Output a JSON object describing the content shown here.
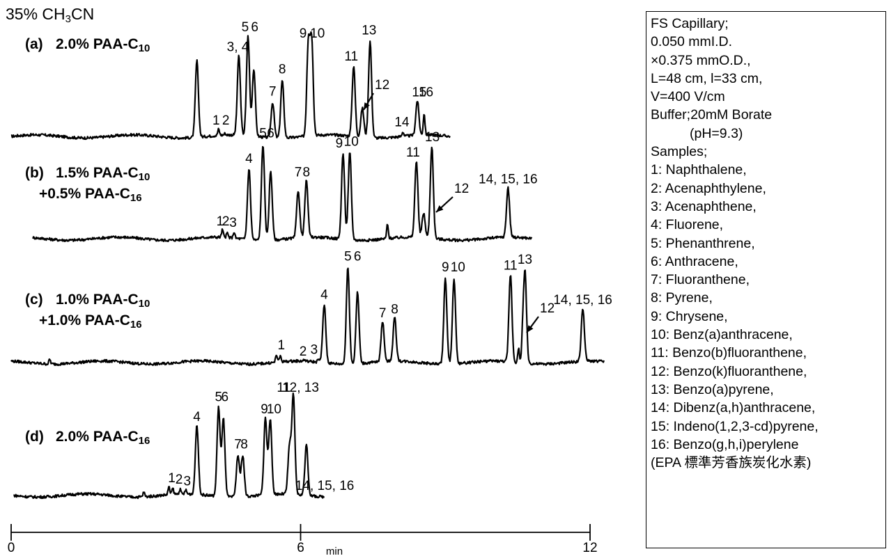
{
  "chart_data": {
    "type": "line",
    "title": "35% CH3CN",
    "title_text": "35% CH",
    "title_sub": "3",
    "title_text2": "CN",
    "xaxis": {
      "label": "min",
      "ticks": [
        "0",
        "6",
        "12"
      ],
      "range": [
        0,
        12
      ]
    },
    "panels": [
      {
        "id": "a",
        "label_lines": [
          {
            "prefix": "(a)",
            "text": "2.0% PAA-C",
            "sub": "10"
          }
        ],
        "peaks": [
          {
            "t": 3.85,
            "h": 1.0
          },
          {
            "t": 4.3,
            "h": 0.08
          },
          {
            "t": 4.43,
            "h": 0.02
          },
          {
            "t": 4.72,
            "h": 1.04
          },
          {
            "t": 4.91,
            "h": 1.3
          },
          {
            "t": 5.03,
            "h": 0.88
          },
          {
            "t": 5.42,
            "h": 0.46
          },
          {
            "t": 5.62,
            "h": 0.75
          },
          {
            "t": 6.16,
            "h": 1.2
          },
          {
            "t": 6.23,
            "h": 1.22
          },
          {
            "t": 7.1,
            "h": 0.92
          },
          {
            "t": 7.28,
            "h": 0.38
          },
          {
            "t": 7.44,
            "h": 1.26
          },
          {
            "t": 8.12,
            "h": 0.06
          },
          {
            "t": 8.42,
            "h": 0.45
          },
          {
            "t": 8.56,
            "h": 0.28
          }
        ],
        "labels": [
          {
            "text": "1",
            "t": 4.25
          },
          {
            "text": "2",
            "t": 4.45
          },
          {
            "text": "3, 4",
            "t": 4.7
          },
          {
            "text": "5",
            "t": 4.85
          },
          {
            "text": "6",
            "t": 5.05
          },
          {
            "text": "7",
            "t": 5.42
          },
          {
            "text": "8",
            "t": 5.62
          },
          {
            "text": "9",
            "t": 6.05
          },
          {
            "text": "10",
            "t": 6.35
          },
          {
            "text": "11",
            "t": 7.05
          },
          {
            "text": "12",
            "t": 7.72
          },
          {
            "text": "13",
            "t": 7.42
          },
          {
            "text": "14",
            "t": 8.1
          },
          {
            "text": "15",
            "t": 8.46
          },
          {
            "text": "16",
            "t": 8.6
          }
        ]
      },
      {
        "id": "b",
        "label_lines": [
          {
            "prefix": "(b)",
            "text": "1.5% PAA-C",
            "sub": "10"
          },
          {
            "prefix": "",
            "text": "+0.5% PAA-C",
            "sub": "16"
          }
        ],
        "peaks": [
          {
            "t": 4.38,
            "h": 0.1
          },
          {
            "t": 4.48,
            "h": 0.06
          },
          {
            "t": 4.62,
            "h": 0.08
          },
          {
            "t": 4.93,
            "h": 0.92
          },
          {
            "t": 5.22,
            "h": 1.25
          },
          {
            "t": 5.38,
            "h": 0.9
          },
          {
            "t": 5.95,
            "h": 0.62
          },
          {
            "t": 6.12,
            "h": 0.74
          },
          {
            "t": 6.88,
            "h": 1.12
          },
          {
            "t": 7.02,
            "h": 1.14
          },
          {
            "t": 7.8,
            "h": 0.18
          },
          {
            "t": 8.4,
            "h": 1.0
          },
          {
            "t": 8.55,
            "h": 0.32
          },
          {
            "t": 8.72,
            "h": 1.2
          },
          {
            "t": 10.3,
            "h": 0.65
          }
        ],
        "labels": [
          {
            "text": "1",
            "t": 4.33
          },
          {
            "text": "2",
            "t": 4.45
          },
          {
            "text": "3",
            "t": 4.6
          },
          {
            "text": "4",
            "t": 4.93
          },
          {
            "text": "5",
            "t": 5.22
          },
          {
            "text": "6",
            "t": 5.38
          },
          {
            "text": "7",
            "t": 5.95
          },
          {
            "text": "8",
            "t": 6.12
          },
          {
            "text": "9",
            "t": 6.8
          },
          {
            "text": "10",
            "t": 7.05
          },
          {
            "text": "11",
            "t": 8.33
          },
          {
            "text": "12",
            "t": 9.15
          },
          {
            "text": "13",
            "t": 8.73
          },
          {
            "text": "14, 15, 16",
            "t": 10.3
          }
        ]
      },
      {
        "id": "c",
        "label_lines": [
          {
            "prefix": "(c)",
            "text": "1.0% PAA-C",
            "sub": "10"
          },
          {
            "prefix": "",
            "text": "+1.0% PAA-C",
            "sub": "16"
          }
        ],
        "peaks": [
          {
            "t": 0.8,
            "h": 0.06
          },
          {
            "t": 5.5,
            "h": 0.1
          },
          {
            "t": 5.58,
            "h": 0.08
          },
          {
            "t": 6.08,
            "h": 0.02
          },
          {
            "t": 6.37,
            "h": 0.04
          },
          {
            "t": 6.49,
            "h": 0.76
          },
          {
            "t": 6.98,
            "h": 1.26
          },
          {
            "t": 7.18,
            "h": 0.93
          },
          {
            "t": 7.7,
            "h": 0.52
          },
          {
            "t": 7.95,
            "h": 0.57
          },
          {
            "t": 9.0,
            "h": 1.12
          },
          {
            "t": 9.18,
            "h": 1.12
          },
          {
            "t": 10.35,
            "h": 1.14
          },
          {
            "t": 10.52,
            "h": 0.18
          },
          {
            "t": 10.6,
            "h": 0.22
          },
          {
            "t": 10.65,
            "h": 1.22
          },
          {
            "t": 11.85,
            "h": 0.69
          }
        ],
        "labels": [
          {
            "text": "1",
            "t": 5.6
          },
          {
            "text": "2",
            "t": 6.05
          },
          {
            "text": "3",
            "t": 6.28
          },
          {
            "text": "4",
            "t": 6.49
          },
          {
            "text": "5",
            "t": 6.98
          },
          {
            "text": "6",
            "t": 7.18
          },
          {
            "text": "7",
            "t": 7.7
          },
          {
            "text": "8",
            "t": 7.95
          },
          {
            "text": "9",
            "t": 9.0
          },
          {
            "text": "10",
            "t": 9.26
          },
          {
            "text": "11",
            "t": 10.35
          },
          {
            "text": "12",
            "t": 11.0
          },
          {
            "text": "13",
            "t": 10.65
          },
          {
            "text": "14, 15, 16",
            "t": 11.85
          }
        ]
      },
      {
        "id": "d",
        "label_lines": [
          {
            "prefix": "(d)",
            "text": "2.0% PAA-C",
            "sub": "16"
          }
        ],
        "peaks": [
          {
            "t": 2.75,
            "h": 0.06
          },
          {
            "t": 3.27,
            "h": 0.1
          },
          {
            "t": 3.35,
            "h": 0.08
          },
          {
            "t": 3.5,
            "h": 0.06
          },
          {
            "t": 3.62,
            "h": 0.05
          },
          {
            "t": 3.85,
            "h": 0.9
          },
          {
            "t": 4.3,
            "h": 1.16
          },
          {
            "t": 4.4,
            "h": 1.02
          },
          {
            "t": 4.7,
            "h": 0.54
          },
          {
            "t": 4.8,
            "h": 0.54
          },
          {
            "t": 5.27,
            "h": 1.0
          },
          {
            "t": 5.37,
            "h": 0.98
          },
          {
            "t": 5.77,
            "h": 0.62
          },
          {
            "t": 5.85,
            "h": 1.28
          },
          {
            "t": 6.12,
            "h": 0.66
          }
        ],
        "labels": [
          {
            "text": "1",
            "t": 3.33
          },
          {
            "text": "2",
            "t": 3.48
          },
          {
            "text": "3",
            "t": 3.65
          },
          {
            "text": "4",
            "t": 3.85
          },
          {
            "text": "5",
            "t": 4.3
          },
          {
            "text": "6",
            "t": 4.43
          },
          {
            "text": "7",
            "t": 4.7
          },
          {
            "text": "8",
            "t": 4.83
          },
          {
            "text": "9",
            "t": 5.25
          },
          {
            "text": "10",
            "t": 5.45
          },
          {
            "text": "11",
            "t": 5.65
          },
          {
            "text": "12, 13",
            "t": 6.0
          },
          {
            "text": "14, 15, 16",
            "t": 6.5
          }
        ]
      }
    ]
  },
  "info_box": {
    "lines": [
      "FS Capillary;",
      "0.050 mmI.D.",
      "×0.375 mmO.D.,",
      "L=48 cm, l=33 cm,",
      "V=400 V/cm",
      "Buffer;20mM Borate",
      "(pH=9.3)",
      "Samples;",
      "1: Naphthalene,",
      "2: Acenaphthylene,",
      "3: Acenaphthene,",
      "4: Fluorene,",
      "5: Phenanthrene,",
      "6: Anthracene,",
      "7: Fluoranthene,",
      "8: Pyrene,",
      "9: Chrysene,",
      "10: Benz(a)anthracene,",
      "11: Benzo(b)fluoranthene,",
      "12: Benzo(k)fluoranthene,",
      "13: Benzo(a)pyrene,",
      "14: Dibenz(a,h)anthracene,",
      "15: Indeno(1,2,3-cd)pyrene,",
      "16: Benzo(g,h,i)perylene",
      "(EPA 標準芳香族炭化水素)"
    ]
  }
}
